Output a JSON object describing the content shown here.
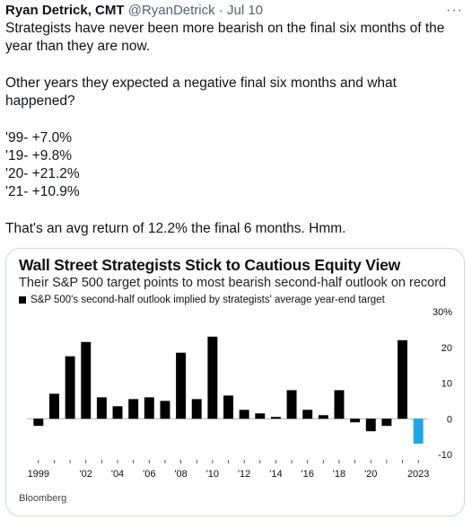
{
  "tweet": {
    "author_name": "Ryan Detrick, CMT",
    "handle": "@RyanDetrick",
    "separator": "·",
    "date": "Jul 10",
    "more_icon": "more-horizontal-icon",
    "lines": {
      "l1": "Strategists have never been more bearish on the final six months of the",
      "l2": "year than they are now.",
      "l3": "Other years they expected a negative final six months and what",
      "l4": "happened?",
      "l5": "'99- +7.0%",
      "l6": "'19- +9.8%",
      "l7": "'20- +21.2%",
      "l8": "'21- +10.9%",
      "l9": "That's an avg return of 12.2% the final 6 months. Hmm."
    }
  },
  "card": {
    "title": "Wall Street Strategists Stick to Cautious Equity View",
    "subtitle": "Their S&P 500 target points to most bearish second-half outlook on record",
    "legend": "S&P 500's second-half outlook implied by strategists' average year-end target",
    "source": "Bloomberg"
  },
  "chart_data": {
    "type": "bar",
    "categories": [
      "1999",
      "2000",
      "2001",
      "2002",
      "2003",
      "2004",
      "2005",
      "2006",
      "2007",
      "2008",
      "2009",
      "2010",
      "2011",
      "2012",
      "2013",
      "2014",
      "2015",
      "2016",
      "2017",
      "2018",
      "2019",
      "2020",
      "2021",
      "2022",
      "2023"
    ],
    "values": [
      -2,
      7,
      17.5,
      21.5,
      6,
      3.5,
      5.5,
      6,
      5,
      18.5,
      5.5,
      23,
      6.5,
      2.5,
      1.5,
      0.5,
      8,
      2.5,
      1,
      8,
      -1,
      -3.5,
      -2,
      22,
      -7
    ],
    "colors": {
      "default": "#000000",
      "highlight": "#1ea7e4"
    },
    "highlight_index": 24,
    "ylim": [
      -10,
      30
    ],
    "yticks": [
      -10,
      0,
      10,
      20,
      30
    ],
    "ytick_labels": [
      "-10",
      "0",
      "10",
      "20",
      "30%"
    ],
    "xtick_labels": [
      {
        "label": "1999",
        "index": 0
      },
      {
        "label": "'02",
        "index": 3
      },
      {
        "label": "'04",
        "index": 5
      },
      {
        "label": "'06",
        "index": 7
      },
      {
        "label": "'08",
        "index": 9
      },
      {
        "label": "'10",
        "index": 11
      },
      {
        "label": "'12",
        "index": 13
      },
      {
        "label": "'14",
        "index": 15
      },
      {
        "label": "'16",
        "index": 17
      },
      {
        "label": "'18",
        "index": 19
      },
      {
        "label": "'20",
        "index": 21
      },
      {
        "label": "2023",
        "index": 24
      }
    ],
    "grid": false
  }
}
